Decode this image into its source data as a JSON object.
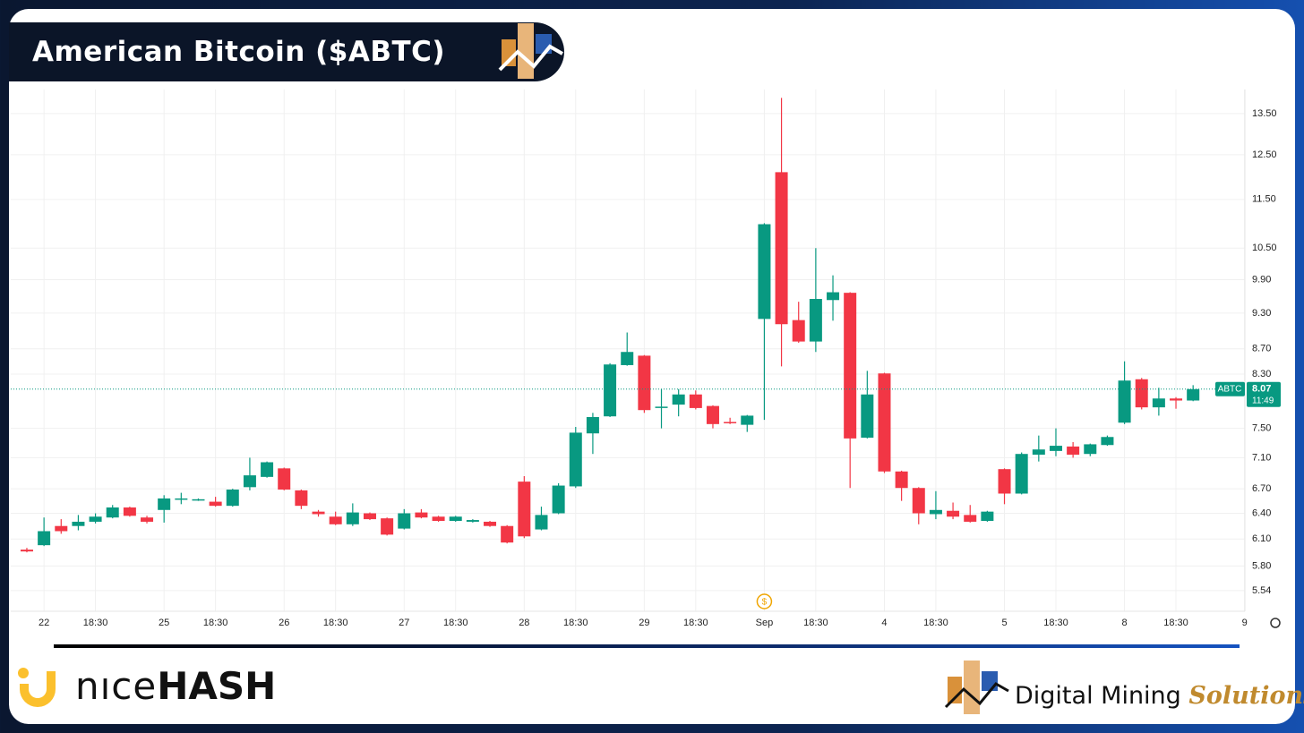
{
  "chart_data": {
    "type": "candlestick",
    "title": "American Bitcoin ($ABTC)",
    "scale": "log",
    "grid": true,
    "up_color": "#089981",
    "down_color": "#f23645",
    "categories": [
      null,
      "22",
      null,
      null,
      "18:30",
      null,
      null,
      null,
      "25",
      null,
      null,
      "18:30",
      null,
      null,
      null,
      "26",
      null,
      null,
      "18:30",
      null,
      null,
      null,
      "27",
      null,
      null,
      "18:30",
      null,
      null,
      null,
      "28",
      null,
      null,
      "18:30",
      null,
      null,
      null,
      "29",
      null,
      null,
      "18:30",
      null,
      null,
      null,
      "Sep",
      null,
      null,
      "18:30",
      null,
      null,
      null,
      "4",
      null,
      null,
      "18:30",
      null,
      null,
      null,
      "5",
      null,
      null,
      "18:30",
      null,
      null,
      null,
      "8",
      null,
      null,
      "18:30",
      null,
      null,
      null,
      "9"
    ],
    "open": [
      5.98,
      6.03,
      6.25,
      6.25,
      6.3,
      6.35,
      6.47,
      6.35,
      6.44,
      6.57,
      6.56,
      6.54,
      6.49,
      6.72,
      6.85,
      6.96,
      6.68,
      6.42,
      6.36,
      6.27,
      6.4,
      6.34,
      6.22,
      6.41,
      6.36,
      6.31,
      6.3,
      6.3,
      6.25,
      6.79,
      6.21,
      6.4,
      6.73,
      7.43,
      7.67,
      8.44,
      8.59,
      7.8,
      7.84,
      7.99,
      7.82,
      7.59,
      7.55,
      9.2,
      12.1,
      9.18,
      8.82,
      9.53,
      9.66,
      7.37,
      8.31,
      6.92,
      6.71,
      6.39,
      6.43,
      6.38,
      6.31,
      6.95,
      6.64,
      7.14,
      7.19,
      7.25,
      7.15,
      7.27,
      7.58,
      8.22,
      7.8,
      7.93,
      7.9,
      null,
      null,
      null
    ],
    "high": [
      6.0,
      6.35,
      6.33,
      6.38,
      6.4,
      6.5,
      6.48,
      6.37,
      6.62,
      6.65,
      6.58,
      6.6,
      6.7,
      7.1,
      7.05,
      6.97,
      6.69,
      6.44,
      6.42,
      6.52,
      6.41,
      6.35,
      6.45,
      6.45,
      6.37,
      6.37,
      6.33,
      6.31,
      6.26,
      6.86,
      6.48,
      6.77,
      7.52,
      7.72,
      8.47,
      8.97,
      8.6,
      8.07,
      8.07,
      8.05,
      7.83,
      7.65,
      7.69,
      11.0,
      13.9,
      9.5,
      10.5,
      9.98,
      9.67,
      8.35,
      8.32,
      6.93,
      6.72,
      6.67,
      6.53,
      6.5,
      6.43,
      6.96,
      7.17,
      7.4,
      7.5,
      7.31,
      7.29,
      7.4,
      8.5,
      8.24,
      8.09,
      7.95,
      8.13,
      null,
      null,
      null
    ],
    "low": [
      5.95,
      6.02,
      6.16,
      6.2,
      6.28,
      6.34,
      6.36,
      6.28,
      6.29,
      6.51,
      6.55,
      6.48,
      6.48,
      6.68,
      6.84,
      6.68,
      6.45,
      6.36,
      6.26,
      6.25,
      6.32,
      6.14,
      6.21,
      6.34,
      6.3,
      6.3,
      6.29,
      6.24,
      6.05,
      6.11,
      6.2,
      6.39,
      6.71,
      7.15,
      7.66,
      8.43,
      7.72,
      7.5,
      7.67,
      7.77,
      7.5,
      7.56,
      7.45,
      7.62,
      8.42,
      8.8,
      8.65,
      9.17,
      6.71,
      7.36,
      6.9,
      6.55,
      6.27,
      6.33,
      6.33,
      6.29,
      6.3,
      6.51,
      6.63,
      7.05,
      7.12,
      7.1,
      7.12,
      7.26,
      7.56,
      7.77,
      7.68,
      7.78,
      7.89,
      null,
      null,
      null
    ],
    "close": [
      5.96,
      6.19,
      6.19,
      6.3,
      6.36,
      6.47,
      6.37,
      6.3,
      6.58,
      6.58,
      6.57,
      6.49,
      6.69,
      6.87,
      7.04,
      6.69,
      6.49,
      6.39,
      6.27,
      6.41,
      6.33,
      6.15,
      6.4,
      6.35,
      6.31,
      6.36,
      6.32,
      6.25,
      6.06,
      6.13,
      6.38,
      6.74,
      7.44,
      7.66,
      8.45,
      8.65,
      7.76,
      7.81,
      7.99,
      7.79,
      7.56,
      7.58,
      7.68,
      10.98,
      9.11,
      8.82,
      9.55,
      9.67,
      7.36,
      7.99,
      6.92,
      6.71,
      6.4,
      6.44,
      6.36,
      6.3,
      6.42,
      6.64,
      7.15,
      7.21,
      7.26,
      7.14,
      7.28,
      7.38,
      8.2,
      7.8,
      7.93,
      7.9,
      8.07,
      null,
      null,
      null
    ],
    "ylim": [
      5.33,
      14.12
    ],
    "yticks": [
      {
        "value": 13.5,
        "label": "13.50"
      },
      {
        "value": 12.5,
        "label": "12.50"
      },
      {
        "value": 11.5,
        "label": "11.50"
      },
      {
        "value": 10.5,
        "label": "10.50"
      },
      {
        "value": 9.9,
        "label": "9.90"
      },
      {
        "value": 9.3,
        "label": "9.30"
      },
      {
        "value": 8.7,
        "label": "8.70"
      },
      {
        "value": 8.3,
        "label": "8.30"
      },
      {
        "value": 7.5,
        "label": "7.50"
      },
      {
        "value": 7.1,
        "label": "7.10"
      },
      {
        "value": 6.7,
        "label": "6.70"
      },
      {
        "value": 6.4,
        "label": "6.40"
      },
      {
        "value": 6.1,
        "label": "6.10"
      },
      {
        "value": 5.8,
        "label": "5.80"
      },
      {
        "value": 5.54,
        "label": "5.54"
      }
    ],
    "symbol_label": "ABTC",
    "last_price": 8.07,
    "countdown": "11:49",
    "event_marker": "$",
    "price_line_color": "#089981"
  },
  "branding": {
    "left_logo_light": "nıce",
    "left_logo_bold": "HASH",
    "right_logo_main": "Digital Mining",
    "right_logo_accent": "Solutions"
  }
}
